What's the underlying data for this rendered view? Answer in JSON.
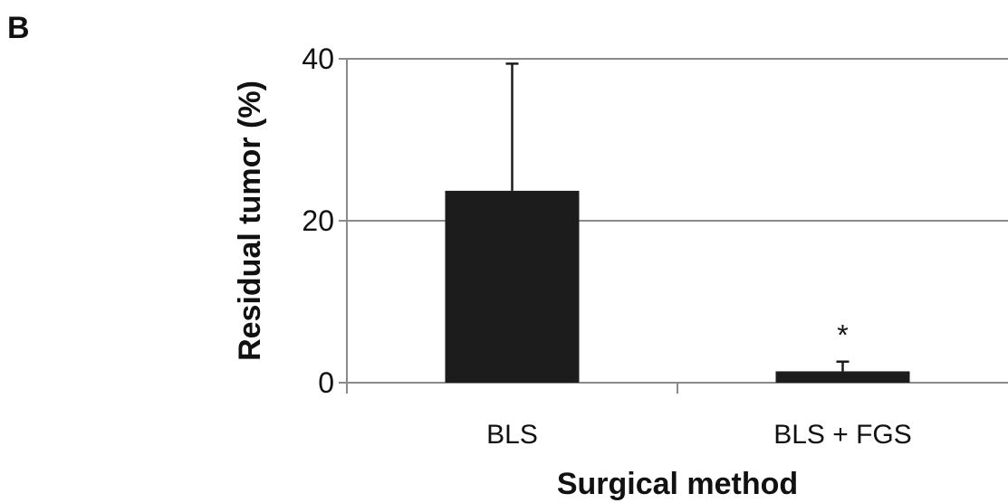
{
  "panel_label": "B",
  "chart_data": {
    "type": "bar",
    "categories": [
      "BLS",
      "BLS + FGS"
    ],
    "values": [
      23.7,
      1.4
    ],
    "error_upper": [
      39.4,
      2.6
    ],
    "significance": [
      "",
      "*"
    ],
    "xlabel": "Surgical method",
    "ylabel": "Residual tumor (%)",
    "ylim": [
      0,
      40
    ],
    "yticks": [
      0,
      20,
      40
    ],
    "grid": true,
    "bar_color": "#1c1c1c",
    "grid_color": "#8a8a8a"
  }
}
